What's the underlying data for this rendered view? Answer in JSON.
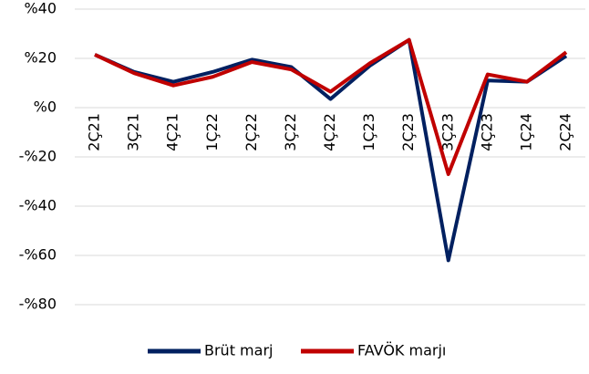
{
  "chart_data": {
    "type": "line",
    "categories": [
      "2Ç21",
      "3Ç21",
      "4Ç21",
      "1Ç22",
      "2Ç22",
      "3Ç22",
      "4Ç22",
      "1Ç23",
      "2Ç23",
      "3Ç23",
      "4Ç23",
      "1Ç24",
      "2Ç24"
    ],
    "series": [
      {
        "name": "Brüt marj",
        "color": "#002060",
        "values": [
          21.5,
          14.5,
          10.5,
          14.5,
          19.5,
          16.5,
          3.5,
          17,
          27.5,
          -62,
          11,
          10.5,
          21
        ]
      },
      {
        "name": "FAVÖK marjı",
        "color": "#c00000",
        "values": [
          21.5,
          14,
          9,
          12.5,
          18.5,
          15.5,
          6.5,
          18,
          27.5,
          -27,
          13.5,
          10.5,
          22.5
        ]
      }
    ],
    "ylim": [
      -80,
      40
    ],
    "yticks": [
      {
        "value": 40,
        "label": "%40"
      },
      {
        "value": 20,
        "label": "%20"
      },
      {
        "value": 0,
        "label": "%0"
      },
      {
        "value": -20,
        "label": "-%20"
      },
      {
        "value": -40,
        "label": "-%40"
      },
      {
        "value": -60,
        "label": "-%60"
      },
      {
        "value": -80,
        "label": "-%80"
      }
    ],
    "grid": true,
    "legend": "bottom"
  }
}
